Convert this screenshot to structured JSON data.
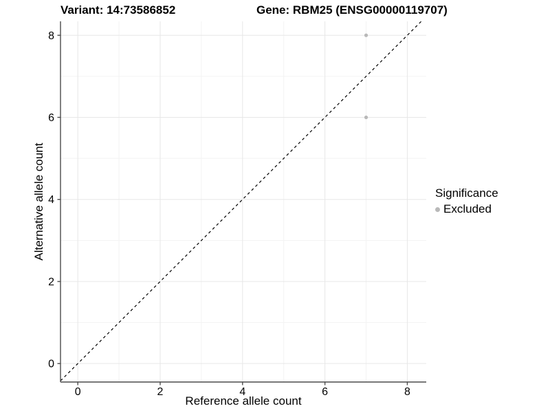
{
  "chart_data": {
    "type": "scatter",
    "title_left": "Variant: 14:73586852",
    "title_right": "Gene: RBM25 (ENSG00000119707)",
    "xlabel": "Reference allele count",
    "ylabel": "Alternative allele count",
    "xlim": [
      -0.42,
      8.46
    ],
    "ylim": [
      -0.45,
      8.34
    ],
    "x_ticks": [
      0,
      2,
      4,
      6,
      8
    ],
    "y_ticks": [
      0,
      2,
      4,
      6,
      8
    ],
    "x_minor_ticks": [
      1,
      3,
      5,
      7
    ],
    "y_minor_ticks": [
      1,
      3,
      5,
      7
    ],
    "grid": "on",
    "series": [
      {
        "name": "Excluded",
        "color": "#b9b9b9",
        "points": [
          {
            "x": 7,
            "y": 8
          },
          {
            "x": 7,
            "y": 6
          }
        ]
      }
    ],
    "reference_line": {
      "slope": 1,
      "intercept": 0,
      "style": "dashed",
      "color": "#000000"
    },
    "legend": {
      "title": "Significance",
      "position": "right",
      "items": [
        {
          "label": "Excluded",
          "color": "#b9b9b9"
        }
      ]
    },
    "colors": {
      "grid_major": "#e7e7e7",
      "grid_minor": "#f3f3f3",
      "axis_line": "#4a4a4a",
      "tick_label": "#000000",
      "background": "#ffffff"
    },
    "tick_label_font_size": 16
  }
}
